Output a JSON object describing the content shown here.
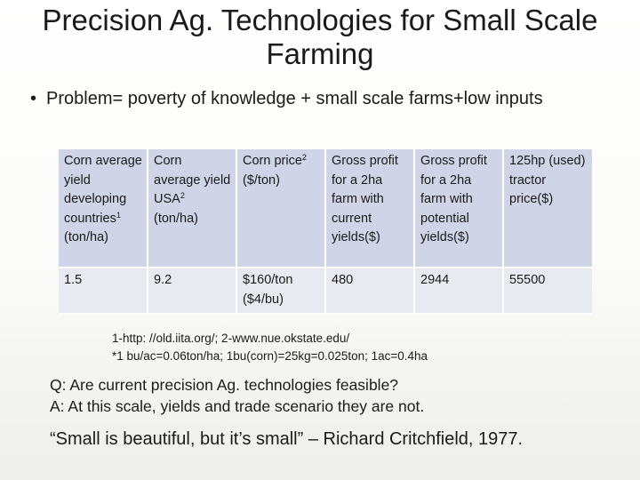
{
  "slide": {
    "title": "Precision Ag. Technologies for Small Scale Farming",
    "bullet_symbol": "•",
    "bullet": "Problem= poverty of knowledge + small scale farms+low inputs"
  },
  "table": {
    "headers": [
      {
        "text": "Corn average yield developing countries",
        "sup": "1",
        "after": "(ton/ha)"
      },
      {
        "text": "Corn average yield USA",
        "sup": "2",
        "after": "(ton/ha)"
      },
      {
        "text": "Corn price",
        "sup": "2",
        "after": "($/ton)"
      },
      {
        "text": "Gross profit for a 2ha farm with current yields($)",
        "sup": "",
        "after": ""
      },
      {
        "text": "Gross profit for a 2ha farm with potential yields($)",
        "sup": "",
        "after": ""
      },
      {
        "text": "125hp (used) tractor price($)",
        "sup": "",
        "after": ""
      }
    ],
    "row": [
      "1.5",
      "9.2",
      "$160/ton ($4/bu)",
      "480",
      "2944",
      "55500"
    ]
  },
  "footnotes": {
    "line1": "1-http: //old.iita.org/; 2-www.nue.okstate.edu/",
    "line2": "*1 bu/ac=0.06ton/ha; 1bu(corn)=25kg=0.025ton; 1ac=0.4ha"
  },
  "qa": {
    "question": "Q:  Are current precision Ag. technologies feasible?",
    "answer": "A:  At this scale, yields and trade scenario they are not."
  },
  "quote": "“Small is beautiful, but it’s small” – Richard Critchfield, 1977."
}
